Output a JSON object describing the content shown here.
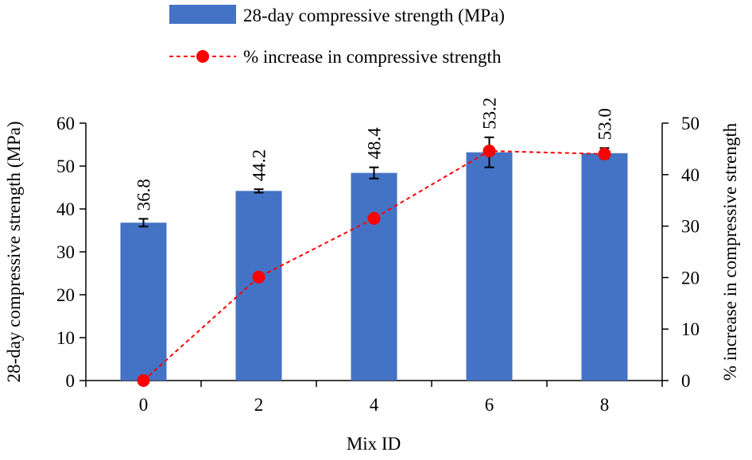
{
  "chart_data": {
    "type": "bar",
    "xlabel": "Mix ID",
    "ylabel": "28-day compressive strength (MPa)",
    "y2label": "% increase in compressive strength",
    "categories": [
      "0",
      "2",
      "4",
      "6",
      "8"
    ],
    "ylim": [
      0,
      60
    ],
    "yticks": [
      0,
      10,
      20,
      30,
      40,
      50,
      60
    ],
    "y2lim": [
      0,
      50
    ],
    "y2ticks": [
      0,
      10,
      20,
      30,
      40,
      50
    ],
    "legend_position": "top-center",
    "series": [
      {
        "name": "28-day compressive strength (MPa)",
        "type": "bar",
        "axis": "left",
        "color": "#4472C4",
        "values": [
          36.8,
          44.2,
          48.4,
          53.2,
          53.0
        ],
        "data_labels": [
          "36.8",
          "44.2",
          "48.4",
          "53.2",
          "53.0"
        ],
        "error": [
          0.9,
          0.4,
          1.3,
          3.5,
          1.2
        ]
      },
      {
        "name": "% increase in compressive strength",
        "type": "line",
        "axis": "right",
        "color": "#FF0000",
        "line_style": "dashed",
        "marker": "circle",
        "values": [
          0,
          20.1,
          31.5,
          44.6,
          44.0
        ]
      }
    ]
  }
}
